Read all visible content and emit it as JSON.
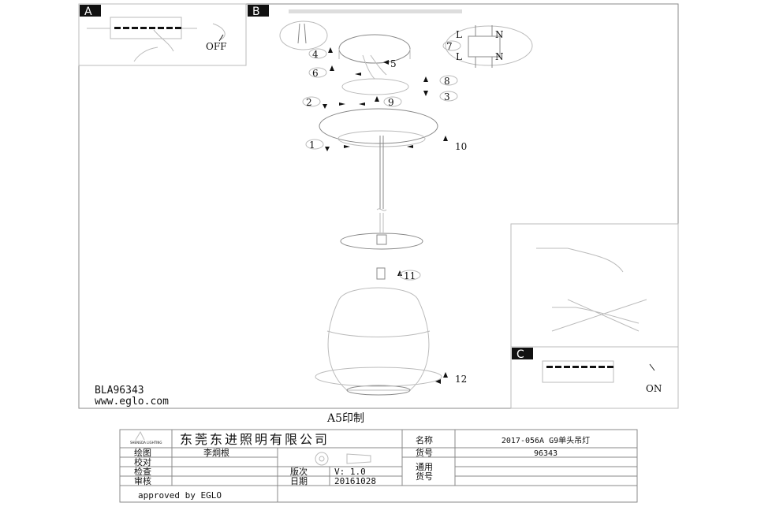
{
  "panels": {
    "a": "A",
    "b": "B",
    "c": "C"
  },
  "panel_a": {
    "switch_state": "OFF"
  },
  "panel_c": {
    "switch_state": "ON"
  },
  "wiring": {
    "live_top": "L",
    "neutral_top": "N",
    "live_bottom": "L",
    "neutral_bottom": "N"
  },
  "steps": [
    "1",
    "2",
    "3",
    "4",
    "5",
    "6",
    "7",
    "8",
    "9",
    "10",
    "11",
    "12"
  ],
  "model_code": "BLA96343",
  "website": "www.eglo.com",
  "print_size": "A5印制",
  "title_block": {
    "logo_text": "SHENGDA LIGHTING",
    "company": "东莞东进照明有限公司",
    "name_label": "名称",
    "name_value": "2017-056A G9单头吊灯",
    "drawn_label": "绘图",
    "drawn_value": "李炯根",
    "checked_label": "校对",
    "inspect_label": "检查",
    "review_label": "审核",
    "item_label": "货号",
    "item_value": "96343",
    "general_item_label_1": "通用",
    "general_item_label_2": "货号",
    "version_label": "版次",
    "version_value": "V: 1.0",
    "date_label": "日期",
    "date_value": "20161028",
    "approved": "approved by EGLO"
  }
}
